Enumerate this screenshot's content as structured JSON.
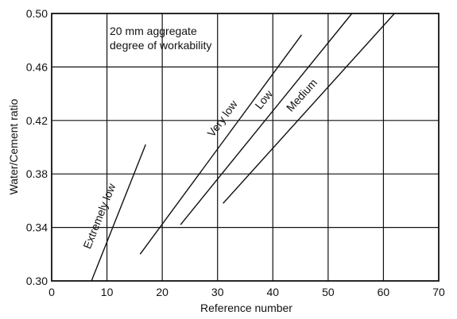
{
  "chart_data": {
    "type": "line",
    "xlabel": "Reference number",
    "ylabel": "Water/Cement ratio",
    "annotation": [
      "20 mm aggregate",
      "degree of workability"
    ],
    "xlim": [
      0,
      70
    ],
    "ylim": [
      0.3,
      0.5
    ],
    "x_ticks": [
      "0",
      "10",
      "20",
      "30",
      "40",
      "50",
      "60",
      "70"
    ],
    "y_ticks": [
      "0.30",
      "0.34",
      "0.38",
      "0.42",
      "0.46",
      "0.50"
    ],
    "grid": true,
    "series": [
      {
        "name": "Extremely low",
        "x": [
          7.2,
          17.0
        ],
        "y": [
          0.3,
          0.402
        ]
      },
      {
        "name": "Very low",
        "x": [
          16.0,
          45.2
        ],
        "y": [
          0.32,
          0.484
        ]
      },
      {
        "name": "Low",
        "x": [
          23.3,
          54.3
        ],
        "y": [
          0.342,
          0.5
        ]
      },
      {
        "name": "Medium",
        "x": [
          31.0,
          62.0
        ],
        "y": [
          0.358,
          0.5
        ]
      }
    ]
  }
}
